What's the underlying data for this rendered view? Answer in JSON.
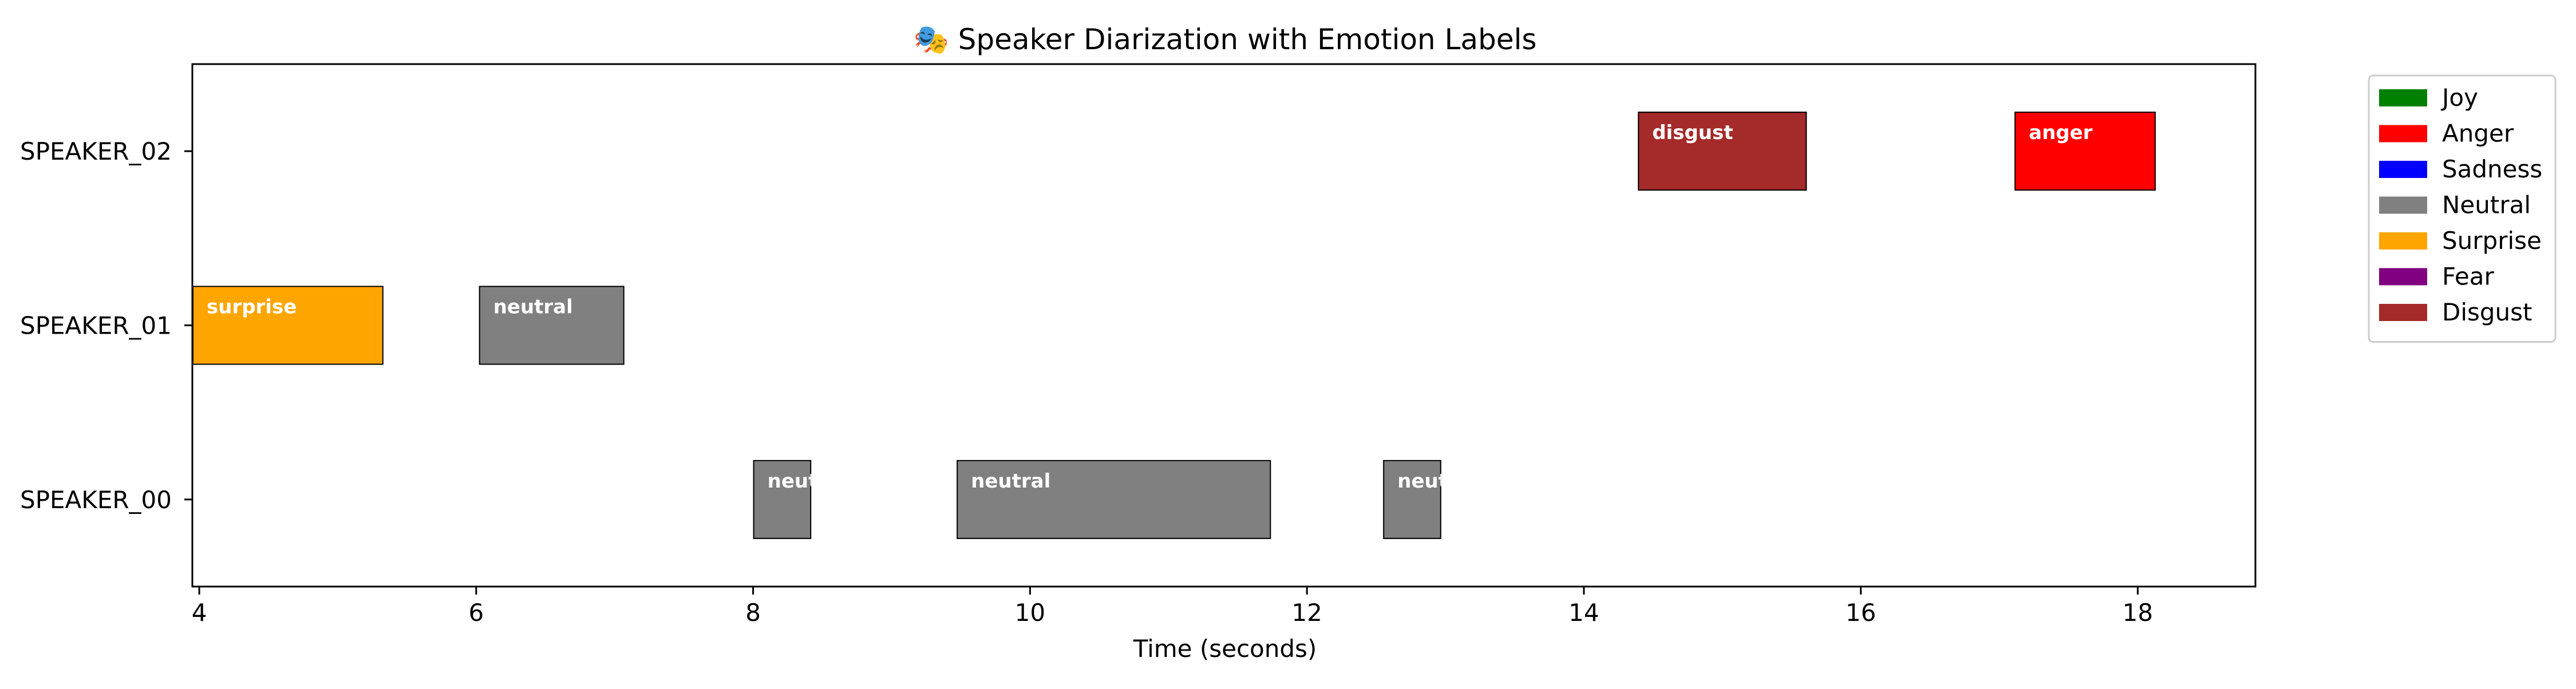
{
  "chart_data": {
    "type": "gantt",
    "title": "🎭 Speaker Diarization with Emotion Labels",
    "xlabel": "Time (seconds)",
    "ylabel": "",
    "xlim": [
      3.95,
      18.85
    ],
    "x_ticks": [
      4,
      6,
      8,
      10,
      12,
      14,
      16,
      18
    ],
    "speakers": [
      "SPEAKER_00",
      "SPEAKER_01",
      "SPEAKER_02"
    ],
    "colors": {
      "joy": "#008000",
      "anger": "#ff0000",
      "sadness": "#0000ff",
      "neutral": "#808080",
      "surprise": "#ffa500",
      "fear": "#800080",
      "disgust": "#a52a2a"
    },
    "legend": {
      "position": "outside-top-right",
      "entries": [
        {
          "key": "joy",
          "label": "Joy"
        },
        {
          "key": "anger",
          "label": "Anger"
        },
        {
          "key": "sadness",
          "label": "Sadness"
        },
        {
          "key": "neutral",
          "label": "Neutral"
        },
        {
          "key": "surprise",
          "label": "Surprise"
        },
        {
          "key": "fear",
          "label": "Fear"
        },
        {
          "key": "disgust",
          "label": "Disgust"
        }
      ]
    },
    "segments": [
      {
        "speaker": "SPEAKER_01",
        "start": 3.95,
        "end": 5.33,
        "emotion": "surprise",
        "label": "surprise"
      },
      {
        "speaker": "SPEAKER_01",
        "start": 6.02,
        "end": 7.07,
        "emotion": "neutral",
        "label": "neutral"
      },
      {
        "speaker": "SPEAKER_00",
        "start": 8.0,
        "end": 8.42,
        "emotion": "neutral",
        "label": "neutral"
      },
      {
        "speaker": "SPEAKER_00",
        "start": 9.47,
        "end": 11.74,
        "emotion": "neutral",
        "label": "neutral"
      },
      {
        "speaker": "SPEAKER_00",
        "start": 12.55,
        "end": 12.97,
        "emotion": "neutral",
        "label": "neutral"
      },
      {
        "speaker": "SPEAKER_02",
        "start": 14.39,
        "end": 15.61,
        "emotion": "disgust",
        "label": "disgust"
      },
      {
        "speaker": "SPEAKER_02",
        "start": 17.11,
        "end": 18.13,
        "emotion": "anger",
        "label": "anger"
      }
    ]
  }
}
